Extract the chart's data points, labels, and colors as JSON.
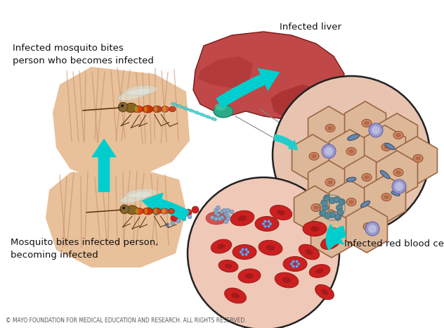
{
  "background_color": "#ffffff",
  "label_top_left": "Infected mosquito bites\nperson who becomes infected",
  "label_top_right": "Infected liver",
  "label_bottom_left": "Mosquito bites infected person,\nbecoming infected",
  "label_bottom_right": "Infected red blood cells",
  "copyright": "© MAYO FOUNDATION FOR MEDICAL EDUCATION AND RESEARCH. ALL RIGHTS RESERVED.",
  "arrow_color": "#00cece",
  "skin_color": "#e8c09a",
  "hair_color": "#c8906a",
  "liver_color": "#c04848",
  "liver_dark": "#8b2020",
  "liver_mid": "#a83030",
  "cell_bg": "#e8c4b0",
  "cell_border": "#9a6644",
  "rbc_bg": "#f0c8b8",
  "rbc_color": "#cc2020",
  "rbc_dark": "#991818",
  "fig_width": 6.32,
  "fig_height": 4.66,
  "dpi": 100
}
